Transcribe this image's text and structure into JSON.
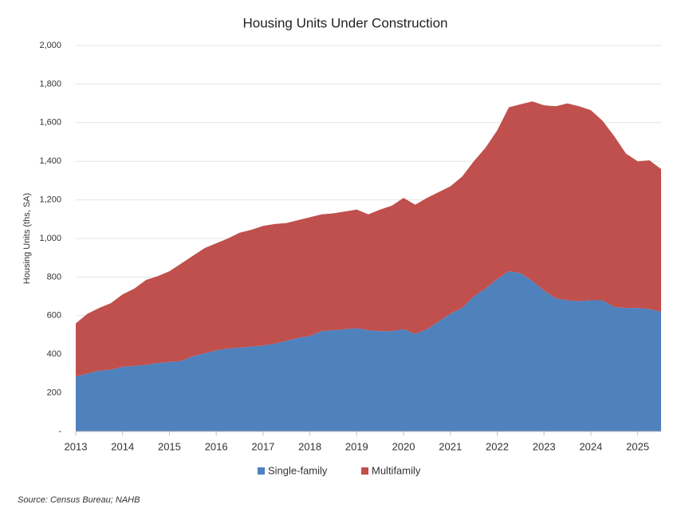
{
  "chart_data": {
    "type": "stacked_area",
    "title": "Housing Units Under Construction",
    "y_label": "Housing Units (ths, SA)",
    "source": "Source: Census Bureau; NAHB",
    "x": [
      2013,
      2013.25,
      2013.5,
      2013.75,
      2014,
      2014.25,
      2014.5,
      2014.75,
      2015,
      2015.25,
      2015.5,
      2015.75,
      2016,
      2016.25,
      2016.5,
      2016.75,
      2017,
      2017.25,
      2017.5,
      2017.75,
      2018,
      2018.25,
      2018.5,
      2018.75,
      2019,
      2019.25,
      2019.5,
      2019.75,
      2020,
      2020.25,
      2020.5,
      2020.75,
      2021,
      2021.25,
      2021.5,
      2021.75,
      2022,
      2022.25,
      2022.5,
      2022.75,
      2023,
      2023.25,
      2023.5,
      2023.75,
      2024,
      2024.25,
      2024.5,
      2024.75,
      2025,
      2025.25,
      2025.5
    ],
    "series": [
      {
        "name": "Single-family",
        "color": "#4f81bd",
        "values": [
          285,
          300,
          315,
          320,
          335,
          340,
          345,
          355,
          360,
          365,
          390,
          405,
          420,
          430,
          435,
          440,
          445,
          455,
          470,
          485,
          495,
          520,
          525,
          530,
          535,
          525,
          520,
          520,
          530,
          505,
          530,
          570,
          610,
          640,
          700,
          740,
          790,
          830,
          820,
          780,
          730,
          690,
          680,
          675,
          680,
          680,
          645,
          640,
          640,
          635,
          620
        ]
      },
      {
        "name": "Multifamily",
        "color": "#c0504d",
        "values": [
          275,
          310,
          325,
          345,
          375,
          400,
          440,
          450,
          470,
          505,
          520,
          545,
          555,
          570,
          595,
          605,
          620,
          620,
          610,
          610,
          615,
          605,
          605,
          610,
          615,
          600,
          630,
          650,
          680,
          670,
          680,
          670,
          660,
          680,
          700,
          730,
          770,
          850,
          875,
          930,
          960,
          995,
          1020,
          1010,
          985,
          930,
          885,
          800,
          760,
          770,
          740
        ]
      }
    ],
    "xlim": [
      2013,
      2025.5
    ],
    "xticks": [
      2013,
      2014,
      2015,
      2016,
      2017,
      2018,
      2019,
      2020,
      2021,
      2022,
      2023,
      2024,
      2025
    ],
    "ylim": [
      0,
      2000
    ],
    "yticks": [
      {
        "value": 0,
        "label": "-"
      },
      200,
      400,
      600,
      800,
      {
        "value": 1000,
        "label": "1,000"
      },
      {
        "value": 1200,
        "label": "1,200"
      },
      {
        "value": 1400,
        "label": "1,400"
      },
      {
        "value": 1600,
        "label": "1,600"
      },
      {
        "value": 1800,
        "label": "1,800"
      },
      {
        "value": 2000,
        "label": "2,000"
      }
    ],
    "grid": true,
    "legend": "bottom"
  }
}
